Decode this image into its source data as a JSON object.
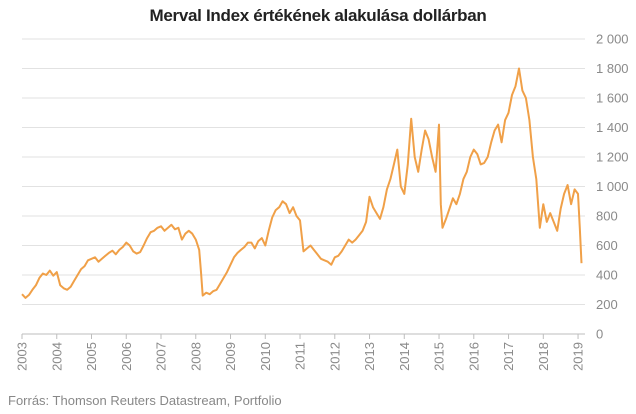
{
  "title": "Merval Index értékének alakulása dollárban",
  "source": "Forrás: Thomson Reuters Datastream, Portfolio",
  "chart_data": {
    "type": "line",
    "title": "Merval Index értékének alakulása dollárban",
    "xlabel": "",
    "ylabel": "",
    "ylim": [
      0,
      2000
    ],
    "xlim": [
      2003.0,
      2019.2
    ],
    "grid": true,
    "legend": "none",
    "line_color": "#f0a048",
    "y_ticks": [
      {
        "value": 0,
        "label": "0"
      },
      {
        "value": 200,
        "label": "200"
      },
      {
        "value": 400,
        "label": "400"
      },
      {
        "value": 600,
        "label": "600"
      },
      {
        "value": 800,
        "label": "800"
      },
      {
        "value": 1000,
        "label": "1 000"
      },
      {
        "value": 1200,
        "label": "1 200"
      },
      {
        "value": 1400,
        "label": "1 400"
      },
      {
        "value": 1600,
        "label": "1 600"
      },
      {
        "value": 1800,
        "label": "1 800"
      },
      {
        "value": 2000,
        "label": "2 000"
      }
    ],
    "x_ticks": [
      {
        "value": 2003,
        "label": "2003"
      },
      {
        "value": 2004,
        "label": "2004"
      },
      {
        "value": 2005,
        "label": "2005"
      },
      {
        "value": 2006,
        "label": "2006"
      },
      {
        "value": 2007,
        "label": "2007"
      },
      {
        "value": 2008,
        "label": "2008"
      },
      {
        "value": 2009,
        "label": "2009"
      },
      {
        "value": 2010,
        "label": "2010"
      },
      {
        "value": 2011,
        "label": "2011"
      },
      {
        "value": 2012,
        "label": "2012"
      },
      {
        "value": 2013,
        "label": "2013"
      },
      {
        "value": 2014,
        "label": "2014"
      },
      {
        "value": 2015,
        "label": "2015"
      },
      {
        "value": 2016,
        "label": "2016"
      },
      {
        "value": 2017,
        "label": "2017"
      },
      {
        "value": 2018,
        "label": "2018"
      },
      {
        "value": 2019,
        "label": "2019"
      }
    ],
    "series": [
      {
        "values": [
          [
            2003.0,
            270
          ],
          [
            2003.1,
            245
          ],
          [
            2003.2,
            265
          ],
          [
            2003.3,
            300
          ],
          [
            2003.4,
            330
          ],
          [
            2003.5,
            380
          ],
          [
            2003.6,
            410
          ],
          [
            2003.7,
            400
          ],
          [
            2003.8,
            430
          ],
          [
            2003.9,
            395
          ],
          [
            2004.0,
            420
          ],
          [
            2004.1,
            330
          ],
          [
            2004.2,
            310
          ],
          [
            2004.3,
            300
          ],
          [
            2004.4,
            320
          ],
          [
            2004.5,
            360
          ],
          [
            2004.6,
            400
          ],
          [
            2004.7,
            440
          ],
          [
            2004.8,
            460
          ],
          [
            2004.9,
            500
          ],
          [
            2005.0,
            510
          ],
          [
            2005.1,
            520
          ],
          [
            2005.2,
            490
          ],
          [
            2005.3,
            510
          ],
          [
            2005.4,
            530
          ],
          [
            2005.5,
            550
          ],
          [
            2005.6,
            565
          ],
          [
            2005.7,
            540
          ],
          [
            2005.8,
            570
          ],
          [
            2005.9,
            590
          ],
          [
            2006.0,
            620
          ],
          [
            2006.1,
            600
          ],
          [
            2006.2,
            560
          ],
          [
            2006.3,
            545
          ],
          [
            2006.4,
            555
          ],
          [
            2006.5,
            600
          ],
          [
            2006.6,
            650
          ],
          [
            2006.7,
            690
          ],
          [
            2006.8,
            700
          ],
          [
            2006.9,
            720
          ],
          [
            2007.0,
            730
          ],
          [
            2007.1,
            700
          ],
          [
            2007.2,
            720
          ],
          [
            2007.3,
            740
          ],
          [
            2007.4,
            710
          ],
          [
            2007.5,
            720
          ],
          [
            2007.6,
            640
          ],
          [
            2007.7,
            680
          ],
          [
            2007.8,
            700
          ],
          [
            2007.9,
            680
          ],
          [
            2008.0,
            640
          ],
          [
            2008.1,
            570
          ],
          [
            2008.15,
            420
          ],
          [
            2008.2,
            260
          ],
          [
            2008.3,
            280
          ],
          [
            2008.4,
            270
          ],
          [
            2008.5,
            290
          ],
          [
            2008.6,
            300
          ],
          [
            2008.7,
            340
          ],
          [
            2008.8,
            380
          ],
          [
            2008.9,
            420
          ],
          [
            2009.0,
            470
          ],
          [
            2009.1,
            520
          ],
          [
            2009.2,
            550
          ],
          [
            2009.3,
            570
          ],
          [
            2009.4,
            590
          ],
          [
            2009.5,
            620
          ],
          [
            2009.6,
            620
          ],
          [
            2009.7,
            580
          ],
          [
            2009.8,
            630
          ],
          [
            2009.9,
            650
          ],
          [
            2010.0,
            600
          ],
          [
            2010.1,
            700
          ],
          [
            2010.2,
            790
          ],
          [
            2010.3,
            840
          ],
          [
            2010.4,
            860
          ],
          [
            2010.5,
            900
          ],
          [
            2010.6,
            880
          ],
          [
            2010.7,
            820
          ],
          [
            2010.8,
            860
          ],
          [
            2010.9,
            800
          ],
          [
            2011.0,
            770
          ],
          [
            2011.1,
            560
          ],
          [
            2011.2,
            580
          ],
          [
            2011.3,
            600
          ],
          [
            2011.4,
            570
          ],
          [
            2011.5,
            540
          ],
          [
            2011.6,
            510
          ],
          [
            2011.7,
            500
          ],
          [
            2011.8,
            490
          ],
          [
            2011.9,
            470
          ],
          [
            2012.0,
            520
          ],
          [
            2012.1,
            530
          ],
          [
            2012.2,
            560
          ],
          [
            2012.3,
            600
          ],
          [
            2012.4,
            640
          ],
          [
            2012.5,
            620
          ],
          [
            2012.6,
            640
          ],
          [
            2012.7,
            670
          ],
          [
            2012.8,
            700
          ],
          [
            2012.9,
            760
          ],
          [
            2013.0,
            930
          ],
          [
            2013.1,
            860
          ],
          [
            2013.2,
            820
          ],
          [
            2013.3,
            780
          ],
          [
            2013.4,
            860
          ],
          [
            2013.5,
            980
          ],
          [
            2013.6,
            1050
          ],
          [
            2013.7,
            1150
          ],
          [
            2013.8,
            1250
          ],
          [
            2013.9,
            1000
          ],
          [
            2014.0,
            950
          ],
          [
            2014.1,
            1150
          ],
          [
            2014.2,
            1460
          ],
          [
            2014.3,
            1200
          ],
          [
            2014.4,
            1100
          ],
          [
            2014.5,
            1250
          ],
          [
            2014.6,
            1380
          ],
          [
            2014.7,
            1320
          ],
          [
            2014.8,
            1200
          ],
          [
            2014.9,
            1100
          ],
          [
            2015.0,
            1420
          ],
          [
            2015.05,
            880
          ],
          [
            2015.1,
            720
          ],
          [
            2015.2,
            780
          ],
          [
            2015.3,
            850
          ],
          [
            2015.4,
            920
          ],
          [
            2015.5,
            880
          ],
          [
            2015.6,
            950
          ],
          [
            2015.7,
            1050
          ],
          [
            2015.8,
            1100
          ],
          [
            2015.9,
            1200
          ],
          [
            2016.0,
            1250
          ],
          [
            2016.1,
            1220
          ],
          [
            2016.2,
            1150
          ],
          [
            2016.3,
            1160
          ],
          [
            2016.4,
            1200
          ],
          [
            2016.5,
            1300
          ],
          [
            2016.6,
            1380
          ],
          [
            2016.7,
            1420
          ],
          [
            2016.8,
            1300
          ],
          [
            2016.9,
            1450
          ],
          [
            2017.0,
            1500
          ],
          [
            2017.1,
            1620
          ],
          [
            2017.2,
            1680
          ],
          [
            2017.3,
            1800
          ],
          [
            2017.4,
            1650
          ],
          [
            2017.5,
            1600
          ],
          [
            2017.6,
            1450
          ],
          [
            2017.7,
            1200
          ],
          [
            2017.8,
            1050
          ],
          [
            2017.9,
            720
          ],
          [
            2018.0,
            880
          ],
          [
            2018.1,
            760
          ],
          [
            2018.2,
            820
          ],
          [
            2018.3,
            760
          ],
          [
            2018.4,
            700
          ],
          [
            2018.5,
            850
          ],
          [
            2018.6,
            950
          ],
          [
            2018.7,
            1010
          ],
          [
            2018.8,
            880
          ],
          [
            2018.9,
            980
          ],
          [
            2019.0,
            950
          ],
          [
            2019.05,
            720
          ],
          [
            2019.1,
            480
          ]
        ]
      }
    ]
  }
}
